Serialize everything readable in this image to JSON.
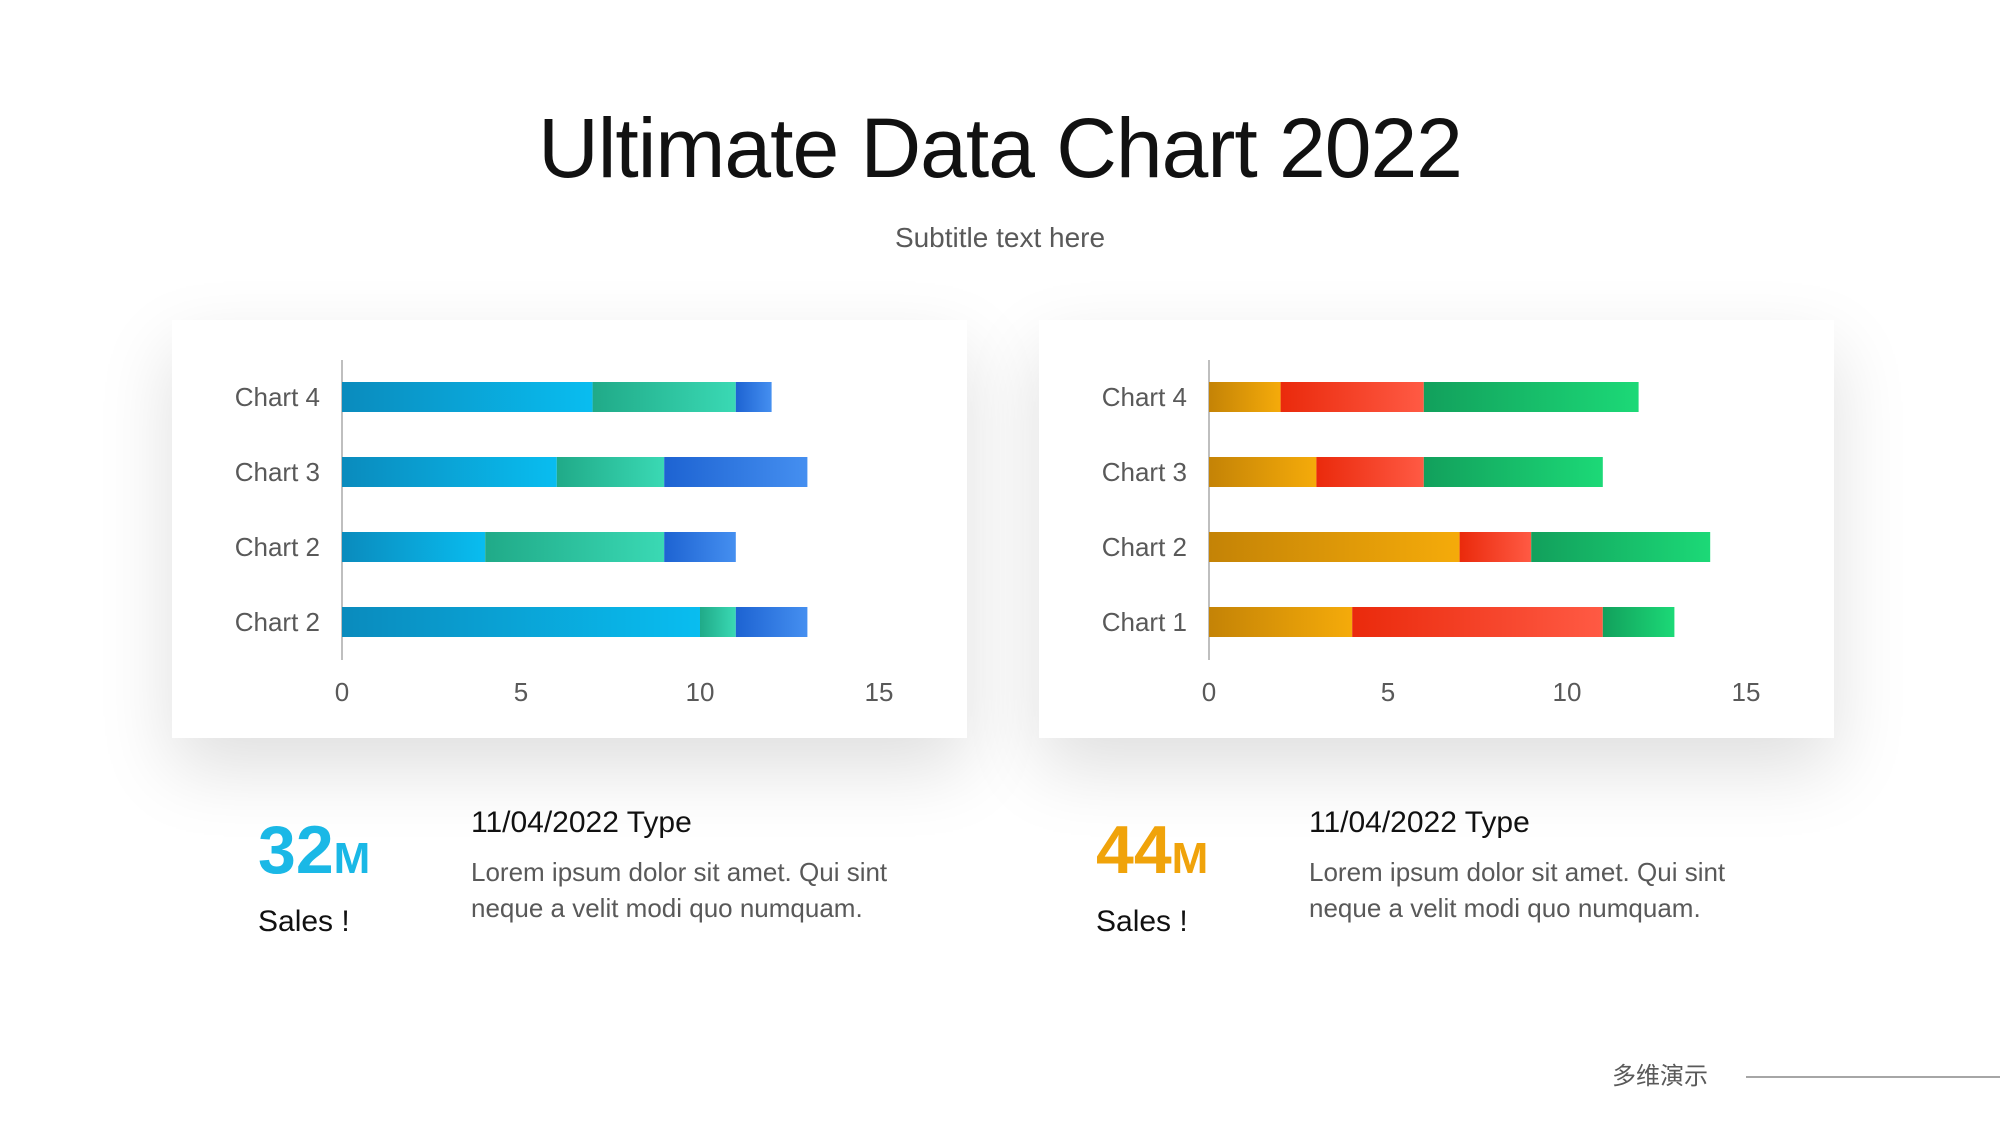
{
  "title": "Ultimate Data Chart 2022",
  "subtitle": "Subtitle text here",
  "chart_data": [
    {
      "type": "bar",
      "orientation": "horizontal",
      "stacked": true,
      "categories": [
        "Chart 4",
        "Chart 3",
        "Chart 2",
        "Chart 2"
      ],
      "series": [
        {
          "values": [
            7,
            6,
            4,
            10
          ],
          "colors": [
            "#0a8bbd",
            "#09bdf0"
          ]
        },
        {
          "values": [
            4,
            3,
            5,
            1
          ],
          "colors": [
            "#20aa88",
            "#3ad9b4"
          ]
        },
        {
          "values": [
            1,
            4,
            2,
            2
          ],
          "colors": [
            "#1d63d2",
            "#458ff0"
          ]
        }
      ],
      "xlim": [
        0,
        15
      ],
      "xticks": [
        "0",
        "5",
        "10",
        "15"
      ],
      "grid": false,
      "legend": "none"
    },
    {
      "type": "bar",
      "orientation": "horizontal",
      "stacked": true,
      "categories": [
        "Chart 4",
        "Chart 3",
        "Chart 2",
        "Chart 1"
      ],
      "series": [
        {
          "values": [
            2,
            3,
            7,
            4
          ],
          "colors": [
            "#c48306",
            "#f5ab0a"
          ]
        },
        {
          "values": [
            4,
            3,
            2,
            7
          ],
          "colors": [
            "#ea2a0c",
            "#ff5a44"
          ]
        },
        {
          "values": [
            6,
            5,
            5,
            2
          ],
          "colors": [
            "#12a05c",
            "#1cd977"
          ]
        }
      ],
      "xlim": [
        0,
        15
      ],
      "xticks": [
        "0",
        "5",
        "10",
        "15"
      ],
      "grid": false,
      "legend": "none"
    }
  ],
  "stats": [
    {
      "number": "32",
      "unit": "M",
      "label": "Sales !",
      "color": "#1ab8e6",
      "heading": "11/04/2022 Type",
      "body": "Lorem ipsum dolor sit amet. Qui sint neque a velit modi quo numquam."
    },
    {
      "number": "44",
      "unit": "M",
      "label": "Sales !",
      "color": "#f0a30a",
      "heading": "11/04/2022 Type",
      "body": "Lorem ipsum dolor sit amet. Qui sint neque a velit modi quo numquam."
    }
  ],
  "footer": {
    "text": "多维演示"
  }
}
